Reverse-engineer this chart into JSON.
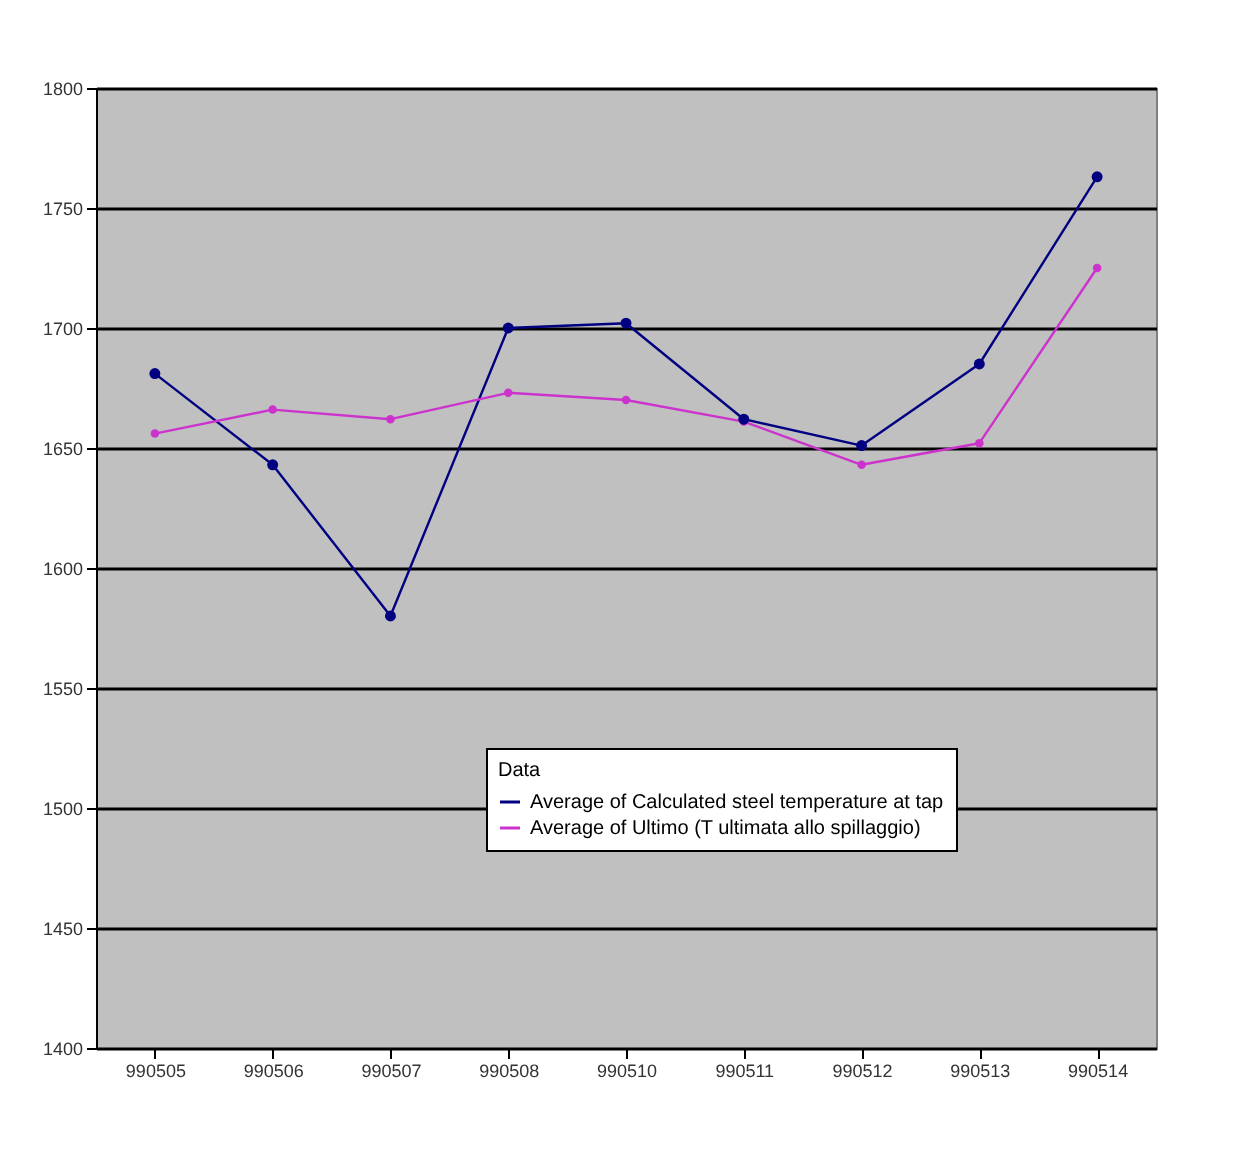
{
  "chart_data": {
    "type": "line",
    "categories": [
      "990505",
      "990506",
      "990507",
      "990508",
      "990510",
      "990511",
      "990512",
      "990513",
      "990514"
    ],
    "series": [
      {
        "name": "Average of Calculated steel temperature at tap",
        "color": "#000080",
        "values": [
          1681,
          1643,
          1580,
          1700,
          1702,
          1662,
          1651,
          1685,
          1763
        ]
      },
      {
        "name": "Average of Ultimo (T ultimata allo spillaggio)",
        "color": "#cc33cc",
        "values": [
          1656,
          1666,
          1662,
          1673,
          1670,
          1661,
          1643,
          1652,
          1725
        ]
      }
    ],
    "ylim": [
      1400,
      1800
    ],
    "yticks": [
      1400,
      1450,
      1500,
      1550,
      1600,
      1650,
      1700,
      1750,
      1800
    ],
    "legend_title": "Data",
    "legend": "bottom right",
    "grid": "y",
    "marker": "circle",
    "line_style": "solid"
  }
}
